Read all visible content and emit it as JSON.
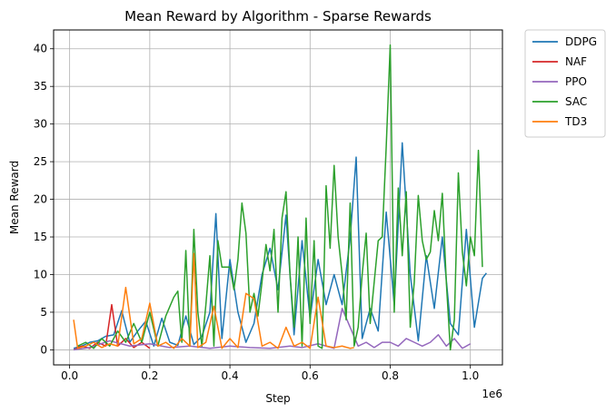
{
  "chart_data": {
    "type": "line",
    "title": "Mean Reward by Algorithm - Sparse Rewards",
    "xlabel": "Step",
    "ylabel": "Mean Reward",
    "x_offset_text": "1e6",
    "xlim": [
      -0.04,
      1.08
    ],
    "ylim": [
      -2,
      42.5
    ],
    "xticks": [
      0,
      0.2,
      0.4,
      0.6,
      0.8,
      1.0
    ],
    "xtick_labels": [
      "0.0",
      "0.2",
      "0.4",
      "0.6",
      "0.8",
      "1.0"
    ],
    "yticks": [
      0,
      5,
      10,
      15,
      20,
      25,
      30,
      35,
      40
    ],
    "ytick_labels": [
      "0",
      "5",
      "10",
      "15",
      "20",
      "25",
      "30",
      "35",
      "40"
    ],
    "grid": true,
    "legend_position": "outside-top-right",
    "series": [
      {
        "name": "DDPG",
        "color": "#1f77b4",
        "x": [
          0.01,
          0.03,
          0.05,
          0.07,
          0.09,
          0.11,
          0.13,
          0.15,
          0.17,
          0.19,
          0.21,
          0.23,
          0.25,
          0.27,
          0.29,
          0.31,
          0.33,
          0.35,
          0.365,
          0.38,
          0.4,
          0.42,
          0.44,
          0.46,
          0.48,
          0.5,
          0.52,
          0.54,
          0.56,
          0.58,
          0.6,
          0.62,
          0.64,
          0.66,
          0.68,
          0.7,
          0.715,
          0.73,
          0.75,
          0.77,
          0.79,
          0.81,
          0.83,
          0.85,
          0.87,
          0.89,
          0.91,
          0.93,
          0.95,
          0.97,
          0.99,
          1.01,
          1.03,
          1.04
        ],
        "y": [
          0.2,
          0.5,
          1.0,
          1.2,
          1.8,
          2.0,
          5.2,
          1.0,
          2.5,
          3.8,
          0.5,
          4.2,
          1.0,
          0.6,
          4.5,
          0.7,
          1.8,
          5.0,
          18.1,
          1.5,
          12.0,
          5.0,
          1.0,
          3.5,
          10.0,
          13.5,
          8.0,
          17.9,
          2.0,
          14.5,
          4.2,
          12.0,
          6.0,
          10.0,
          6.0,
          14.8,
          25.6,
          1.5,
          5.5,
          2.5,
          18.3,
          6.0,
          27.5,
          10.0,
          1.2,
          12.5,
          5.5,
          15.0,
          3.5,
          2.0,
          16.0,
          3.0,
          9.5,
          10.2
        ]
      },
      {
        "name": "NAF",
        "color": "#d62728",
        "x": [
          0.01,
          0.03,
          0.05,
          0.07,
          0.09,
          0.105,
          0.12,
          0.14,
          0.16,
          0.18,
          0.2
        ],
        "y": [
          0.0,
          0.5,
          0.2,
          1.0,
          0.5,
          6.0,
          0.5,
          1.5,
          0.3,
          1.0,
          0.2
        ]
      },
      {
        "name": "PPO",
        "color": "#9467bd",
        "x": [
          0.01,
          0.05,
          0.1,
          0.15,
          0.2,
          0.25,
          0.3,
          0.35,
          0.4,
          0.45,
          0.5,
          0.55,
          0.58,
          0.62,
          0.66,
          0.68,
          0.7,
          0.72,
          0.74,
          0.76,
          0.78,
          0.8,
          0.82,
          0.84,
          0.86,
          0.88,
          0.9,
          0.92,
          0.94,
          0.96,
          0.98,
          1.0
        ],
        "y": [
          0.0,
          0.3,
          1.2,
          0.5,
          0.8,
          0.3,
          0.5,
          0.2,
          0.5,
          0.3,
          0.2,
          0.5,
          0.3,
          0.8,
          0.2,
          5.5,
          3.0,
          0.5,
          1.0,
          0.3,
          1.0,
          1.0,
          0.5,
          1.5,
          1.0,
          0.5,
          1.0,
          2.0,
          0.5,
          1.5,
          0.2,
          0.8
        ]
      },
      {
        "name": "SAC",
        "color": "#2ca02c",
        "x": [
          0.02,
          0.04,
          0.06,
          0.08,
          0.1,
          0.12,
          0.14,
          0.16,
          0.18,
          0.2,
          0.22,
          0.24,
          0.26,
          0.27,
          0.28,
          0.29,
          0.3,
          0.31,
          0.32,
          0.33,
          0.34,
          0.35,
          0.36,
          0.37,
          0.38,
          0.39,
          0.4,
          0.41,
          0.42,
          0.43,
          0.44,
          0.45,
          0.46,
          0.47,
          0.48,
          0.49,
          0.5,
          0.51,
          0.52,
          0.53,
          0.54,
          0.55,
          0.56,
          0.57,
          0.58,
          0.59,
          0.6,
          0.61,
          0.62,
          0.63,
          0.64,
          0.65,
          0.66,
          0.67,
          0.68,
          0.69,
          0.7,
          0.71,
          0.72,
          0.73,
          0.74,
          0.75,
          0.76,
          0.77,
          0.78,
          0.79,
          0.8,
          0.81,
          0.82,
          0.83,
          0.84,
          0.85,
          0.86,
          0.87,
          0.88,
          0.89,
          0.9,
          0.91,
          0.92,
          0.93,
          0.94,
          0.95,
          0.96,
          0.97,
          0.98,
          0.99,
          1.0,
          1.01,
          1.02,
          1.03
        ],
        "y": [
          0.5,
          1.0,
          0.2,
          1.5,
          0.5,
          2.5,
          1.0,
          3.5,
          1.0,
          5.0,
          0.5,
          4.5,
          7.0,
          7.8,
          1.0,
          13.2,
          0.5,
          16.0,
          5.0,
          0.5,
          6.0,
          12.5,
          0.5,
          14.5,
          11.0,
          11.0,
          11.0,
          8.0,
          12.0,
          19.5,
          15.5,
          5.0,
          7.5,
          4.5,
          9.0,
          14.0,
          10.5,
          16.0,
          5.0,
          17.5,
          21.0,
          10.0,
          3.0,
          15.0,
          0.5,
          17.5,
          3.5,
          14.5,
          0.5,
          0.2,
          21.8,
          13.5,
          24.5,
          15.0,
          10.0,
          4.0,
          19.5,
          0.5,
          3.0,
          10.0,
          15.5,
          3.5,
          9.0,
          14.5,
          15.0,
          27.0,
          40.5,
          5.0,
          21.5,
          12.5,
          21.0,
          3.0,
          9.0,
          20.5,
          14.5,
          12.0,
          13.0,
          18.5,
          14.5,
          20.8,
          9.0,
          0.0,
          4.0,
          23.5,
          13.0,
          8.5,
          15.0,
          12.5,
          26.5,
          11.0
        ]
      },
      {
        "name": "TD3",
        "color": "#ff7f0e",
        "x": [
          0.01,
          0.02,
          0.04,
          0.06,
          0.08,
          0.1,
          0.12,
          0.14,
          0.16,
          0.18,
          0.2,
          0.22,
          0.24,
          0.26,
          0.28,
          0.3,
          0.31,
          0.32,
          0.34,
          0.36,
          0.38,
          0.4,
          0.42,
          0.44,
          0.46,
          0.48,
          0.5,
          0.52,
          0.54,
          0.56,
          0.58,
          0.6,
          0.62,
          0.64,
          0.66,
          0.68,
          0.7,
          0.71
        ],
        "y": [
          4.0,
          0.2,
          0.5,
          1.0,
          0.3,
          0.8,
          0.5,
          8.3,
          0.8,
          1.5,
          6.2,
          0.5,
          1.0,
          0.2,
          1.5,
          0.5,
          12.8,
          0.3,
          1.0,
          5.8,
          0.2,
          1.5,
          0.3,
          7.5,
          6.8,
          0.5,
          1.0,
          0.2,
          3.0,
          0.5,
          1.0,
          0.2,
          7.0,
          0.5,
          0.3,
          0.5,
          0.2,
          0.3
        ]
      }
    ]
  }
}
